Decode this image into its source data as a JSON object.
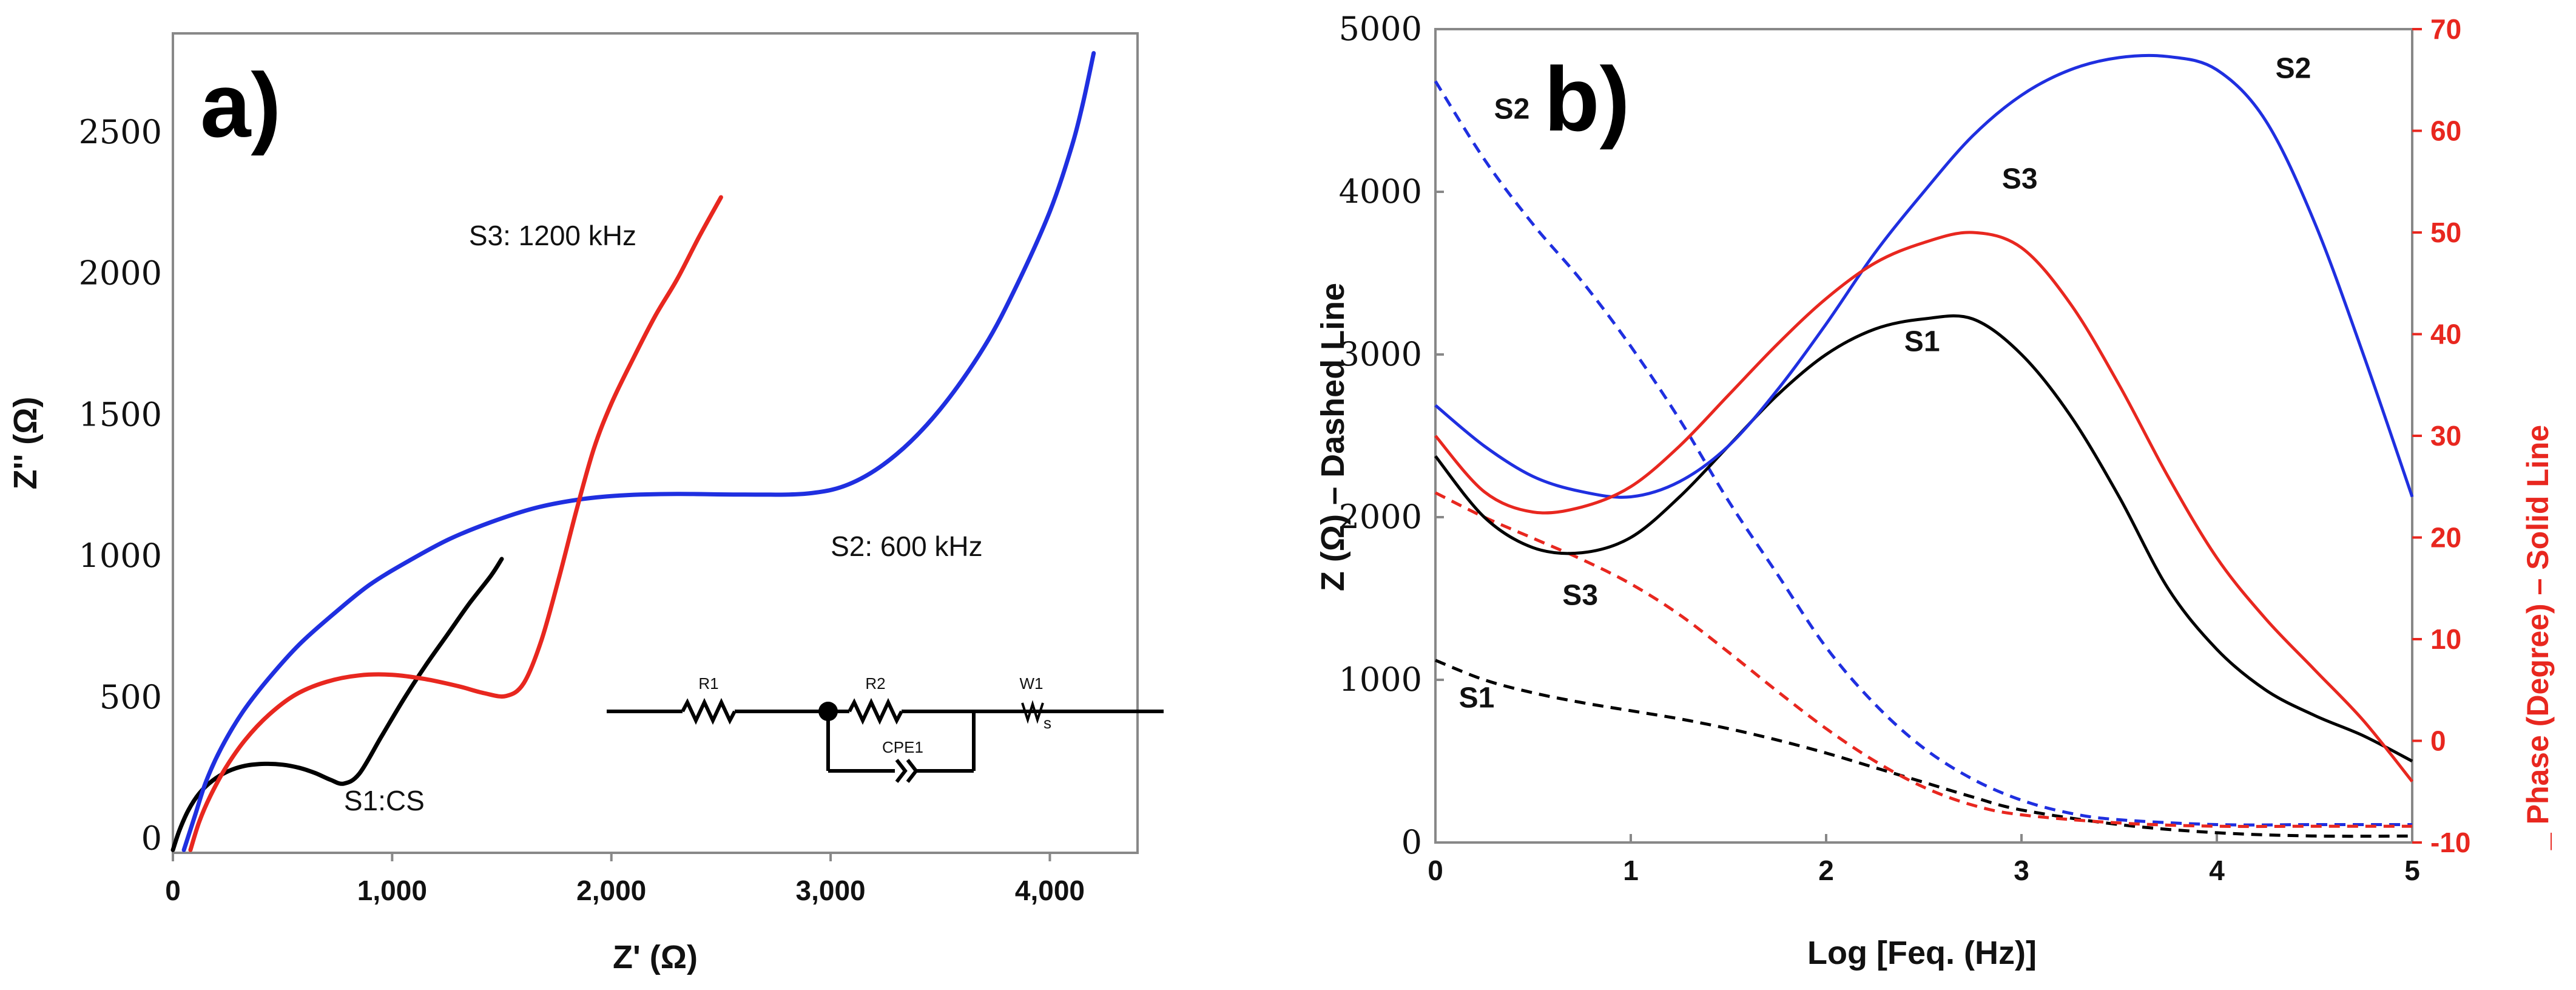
{
  "chart_data": [
    {
      "type": "line",
      "panel_label": "a)",
      "xlabel": "Z' (Ω)",
      "ylabel": "Z'' (Ω)",
      "xlim": [
        0,
        4400
      ],
      "ylim": [
        -50,
        2850
      ],
      "xticks": [
        "0",
        "1,000",
        "2,000",
        "3,000",
        "4,000"
      ],
      "xtick_values": [
        0,
        1000,
        2000,
        3000,
        4000
      ],
      "yticks": [
        "0",
        "500",
        "1000",
        "1500",
        "2000",
        "2500"
      ],
      "ytick_values": [
        0,
        500,
        1000,
        1500,
        2000,
        2500
      ],
      "series": [
        {
          "name": "S1:CS",
          "color": "#000000",
          "x": [
            0,
            30,
            70,
            120,
            180,
            250,
            330,
            420,
            500,
            580,
            650,
            720,
            780,
            850,
            950,
            1050,
            1150,
            1250,
            1350,
            1450,
            1500
          ],
          "y": [
            -40,
            30,
            100,
            160,
            205,
            238,
            258,
            265,
            262,
            250,
            232,
            208,
            195,
            230,
            360,
            490,
            610,
            720,
            830,
            930,
            990
          ]
        },
        {
          "name": "S2: 600 kHz",
          "color": "#1f2fe0",
          "x": [
            50,
            100,
            150,
            220,
            320,
            440,
            580,
            740,
            900,
            1080,
            1260,
            1450,
            1650,
            1850,
            2050,
            2300,
            2600,
            2900,
            3100,
            3300,
            3500,
            3700,
            3850,
            4000,
            4100,
            4150,
            4200
          ],
          "y": [
            -40,
            80,
            200,
            320,
            450,
            570,
            690,
            800,
            900,
            985,
            1060,
            1120,
            1170,
            1200,
            1215,
            1220,
            1218,
            1222,
            1260,
            1360,
            1520,
            1740,
            1960,
            2220,
            2450,
            2600,
            2780
          ]
        },
        {
          "name": "S3: 1200 kHz",
          "color": "#e8271f",
          "x": [
            80,
            120,
            170,
            240,
            330,
            440,
            560,
            700,
            850,
            1000,
            1150,
            1300,
            1420,
            1520,
            1600,
            1680,
            1760,
            1840,
            1920,
            2000,
            2100,
            2200,
            2300,
            2400,
            2500
          ],
          "y": [
            -40,
            60,
            150,
            250,
            350,
            440,
            510,
            555,
            578,
            580,
            565,
            540,
            515,
            505,
            550,
            700,
            920,
            1160,
            1380,
            1540,
            1700,
            1850,
            1980,
            2130,
            2270
          ]
        }
      ],
      "annotations": [
        {
          "text": "S3: 1200 kHz",
          "x": 1350,
          "y": 2100
        },
        {
          "text": "S2: 600 kHz",
          "x": 3000,
          "y": 1000
        },
        {
          "text": "S1:CS",
          "x": 780,
          "y": 100
        }
      ],
      "circuit_labels": [
        "R1",
        "R2",
        "W1",
        "CPE1",
        "s"
      ]
    },
    {
      "type": "line",
      "panel_label": "b)",
      "xlabel": "Log [Feq. (Hz)]",
      "ylabel": "Z (Ω) – Dashed Line",
      "ylabel_right": "_ Phase (Degree) – Solid Line",
      "xlim": [
        0,
        5
      ],
      "ylim": [
        0,
        5000
      ],
      "ylim_right": [
        -10,
        70
      ],
      "xticks": [
        "0",
        "1",
        "2",
        "3",
        "4",
        "5"
      ],
      "xtick_values": [
        0,
        1,
        2,
        3,
        4,
        5
      ],
      "yticks": [
        "0",
        "1000",
        "2000",
        "3000",
        "4000",
        "5000"
      ],
      "ytick_values": [
        0,
        1000,
        2000,
        3000,
        4000,
        5000
      ],
      "yticks_right": [
        "-10",
        "0",
        "10",
        "20",
        "30",
        "40",
        "50",
        "60",
        "70"
      ],
      "ytick_values_right": [
        -10,
        0,
        10,
        20,
        30,
        40,
        50,
        60,
        70
      ],
      "series": [
        {
          "name": "S1 Z",
          "axis": "left",
          "style": "dashed",
          "color": "#000000",
          "x": [
            0,
            0.25,
            0.5,
            0.75,
            1,
            1.25,
            1.5,
            1.75,
            2,
            2.25,
            2.5,
            2.75,
            3,
            3.5,
            4,
            4.5,
            5
          ],
          "y": [
            1120,
            1000,
            920,
            860,
            810,
            760,
            700,
            630,
            550,
            460,
            370,
            280,
            200,
            110,
            60,
            40,
            40
          ]
        },
        {
          "name": "S2 Z",
          "axis": "left",
          "style": "dashed",
          "color": "#1f2fe0",
          "x": [
            0,
            0.25,
            0.5,
            0.75,
            1,
            1.25,
            1.5,
            1.75,
            2,
            2.25,
            2.5,
            2.75,
            3,
            3.25,
            3.5,
            4,
            4.5,
            5
          ],
          "y": [
            4680,
            4200,
            3800,
            3450,
            3050,
            2600,
            2100,
            1650,
            1200,
            850,
            580,
            390,
            260,
            180,
            140,
            110,
            110,
            110
          ]
        },
        {
          "name": "S3 Z",
          "axis": "left",
          "style": "dashed",
          "color": "#e8271f",
          "x": [
            0,
            0.25,
            0.5,
            0.75,
            1,
            1.25,
            1.5,
            1.75,
            2,
            2.25,
            2.5,
            2.75,
            3,
            3.5,
            4,
            4.5,
            5
          ],
          "y": [
            2150,
            2000,
            1870,
            1740,
            1590,
            1400,
            1170,
            930,
            700,
            500,
            340,
            230,
            170,
            120,
            100,
            100,
            100
          ]
        },
        {
          "name": "S1",
          "axis": "right",
          "style": "solid",
          "color": "#000000",
          "x": [
            0,
            0.25,
            0.5,
            0.75,
            1,
            1.25,
            1.5,
            1.75,
            2,
            2.25,
            2.5,
            2.75,
            3,
            3.25,
            3.5,
            3.75,
            4,
            4.25,
            4.5,
            4.75,
            5
          ],
          "y": [
            28,
            22,
            19,
            18.5,
            20,
            24,
            29,
            34,
            38,
            40.5,
            41.5,
            41.5,
            38,
            32,
            24,
            15,
            9,
            5,
            2.5,
            0.5,
            -2
          ]
        },
        {
          "name": "S2",
          "axis": "right",
          "style": "solid",
          "color": "#1f2fe0",
          "x": [
            0,
            0.25,
            0.5,
            0.75,
            1,
            1.25,
            1.5,
            1.75,
            2,
            2.25,
            2.5,
            2.75,
            3,
            3.25,
            3.5,
            3.75,
            4,
            4.25,
            4.5,
            4.75,
            5
          ],
          "y": [
            33,
            29,
            26,
            24.5,
            24,
            25.5,
            29,
            34.5,
            41,
            48,
            54,
            59.5,
            63.5,
            66,
            67.2,
            67.3,
            66,
            61,
            51,
            38,
            24
          ]
        },
        {
          "name": "S3",
          "axis": "right",
          "style": "solid",
          "color": "#e8271f",
          "x": [
            0,
            0.25,
            0.5,
            0.75,
            1,
            1.25,
            1.5,
            1.75,
            2,
            2.25,
            2.5,
            2.75,
            3,
            3.25,
            3.5,
            3.75,
            4,
            4.25,
            4.5,
            4.75,
            5
          ],
          "y": [
            30,
            24.5,
            22.5,
            23,
            25,
            29,
            34,
            39,
            43.5,
            47,
            49,
            50,
            48.5,
            43,
            35,
            26,
            18,
            12,
            7,
            2,
            -4
          ]
        }
      ],
      "annotations": [
        {
          "text": "S2",
          "x": 0.3,
          "y": 4450
        },
        {
          "text": "S2",
          "x": 4.3,
          "y": 4700
        },
        {
          "text": "S3",
          "x": 2.9,
          "y": 4020
        },
        {
          "text": "S1",
          "x": 2.4,
          "y": 3020
        },
        {
          "text": "S3",
          "x": 0.65,
          "y": 1460
        },
        {
          "text": "S1",
          "x": 0.12,
          "y": 830
        }
      ]
    }
  ]
}
